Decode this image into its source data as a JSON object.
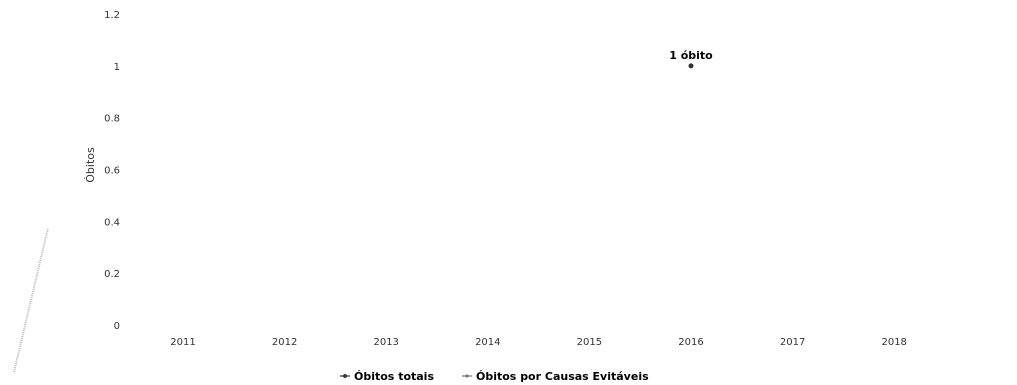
{
  "chart_data": {
    "type": "line",
    "xlabel": "",
    "ylabel": "Óbitos",
    "categories": [
      "2011",
      "2012",
      "2013",
      "2014",
      "2015",
      "2016",
      "2017",
      "2018"
    ],
    "ylim": [
      0,
      1.2
    ],
    "yticks": [
      "0",
      "0.2",
      "0.4",
      "0.6",
      "0.8",
      "1",
      "1.2"
    ],
    "grid": false,
    "legend_position": "bottom",
    "series": [
      {
        "name": "Óbitos totais",
        "color": "#333333",
        "values": [
          null,
          null,
          null,
          null,
          null,
          1,
          null,
          null
        ]
      },
      {
        "name": "Óbitos por Causas Evitáveis",
        "color": "#777777",
        "values": [
          null,
          null,
          null,
          null,
          null,
          null,
          null,
          null
        ]
      }
    ],
    "data_labels": [
      {
        "series": 0,
        "category": "2016",
        "text": "1 óbito"
      }
    ]
  }
}
